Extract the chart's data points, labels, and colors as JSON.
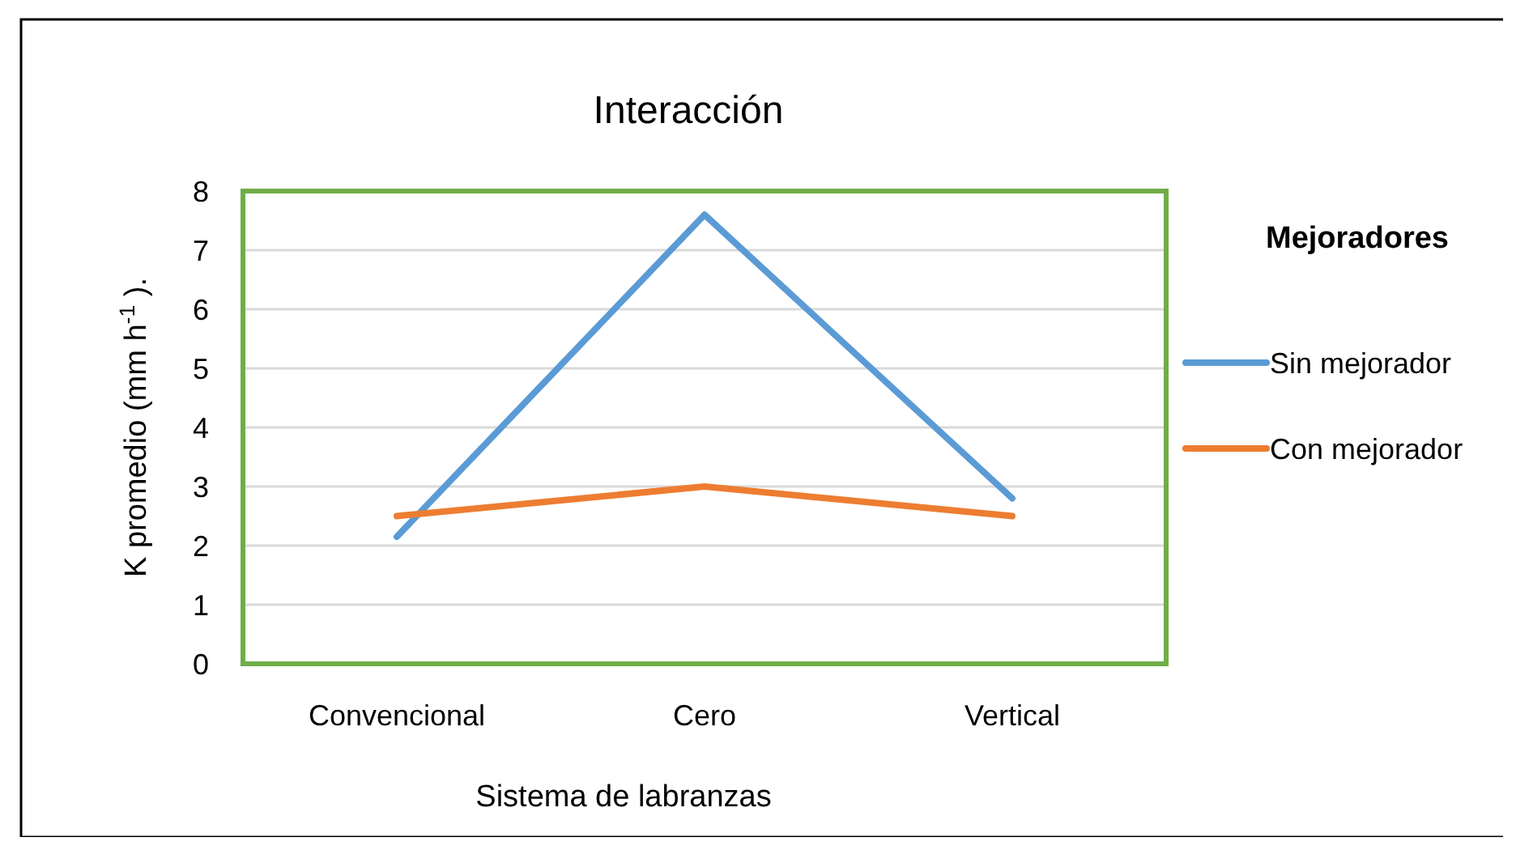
{
  "chart_data": {
    "type": "line",
    "title": "Interacción",
    "xlabel": "Sistema de labranzas",
    "ylabel": "K promedio (mm h$^{-1}$ ).",
    "legend_title": "Mejoradores",
    "categories": [
      "Convencional",
      "Cero",
      "Vertical"
    ],
    "series": [
      {
        "name": "Sin mejorador",
        "color": "#5b9bd5",
        "values": [
          2.15,
          7.6,
          2.8
        ]
      },
      {
        "name": "Con mejorador",
        "color": "#ed7d31",
        "values": [
          2.5,
          3.0,
          2.5
        ]
      }
    ],
    "ylim": [
      0,
      8
    ],
    "yticks": [
      0,
      1,
      2,
      3,
      4,
      5,
      6,
      7,
      8
    ],
    "grid": "y",
    "legend": "right",
    "marker": "none",
    "line_style": "solid"
  }
}
